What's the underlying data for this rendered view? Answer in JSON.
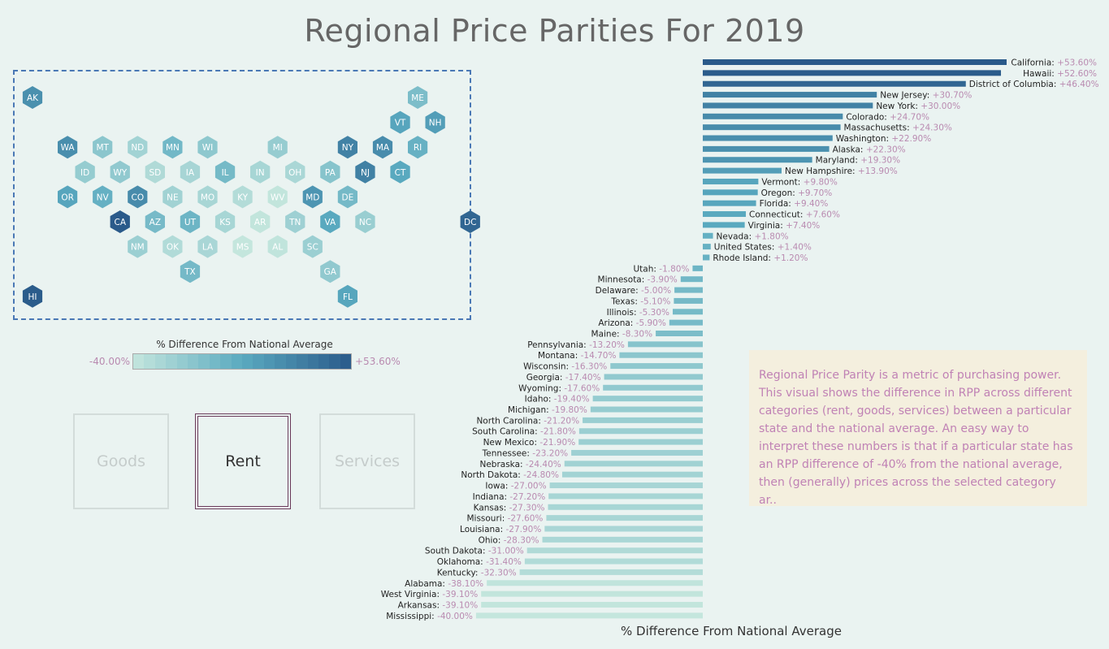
{
  "title": "Regional Price Parities For 2019",
  "legend": {
    "title": "% Difference From National Average",
    "min_label": "-40.00%",
    "max_label": "+53.60%",
    "color_low": "#c4e6dd",
    "color_high": "#2a5a8a"
  },
  "buttons": [
    {
      "label": "Goods",
      "active": false
    },
    {
      "label": "Rent",
      "active": true
    },
    {
      "label": "Services",
      "active": false
    }
  ],
  "info_text": "Regional Price Parity is a metric of purchasing power. This visual shows the difference in RPP  across different categories (rent, goods, services) between a particular state and the national average. An easy way to interpret these numbers is that if a particular state has an RPP difference of -40% from the national average, then (generally) prices across the selected category ar..",
  "chart_data": [
    {
      "type": "hex-map",
      "states": [
        {
          "code": "AK",
          "col": 0,
          "row": 0,
          "value": 22.3
        },
        {
          "code": "ME",
          "col": 11,
          "row": 0,
          "value": -8.3
        },
        {
          "code": "VT",
          "col": 10,
          "row": 1,
          "value": 9.8
        },
        {
          "code": "NH",
          "col": 11,
          "row": 1,
          "value": 13.9
        },
        {
          "code": "WA",
          "col": 1,
          "row": 2,
          "value": 22.9
        },
        {
          "code": "MT",
          "col": 2,
          "row": 2,
          "value": -14.7
        },
        {
          "code": "ND",
          "col": 3,
          "row": 2,
          "value": -24.8
        },
        {
          "code": "MN",
          "col": 4,
          "row": 2,
          "value": -3.9
        },
        {
          "code": "WI",
          "col": 5,
          "row": 2,
          "value": -16.3
        },
        {
          "code": "MI",
          "col": 7,
          "row": 2,
          "value": -19.8
        },
        {
          "code": "NY",
          "col": 9,
          "row": 2,
          "value": 30.0
        },
        {
          "code": "MA",
          "col": 10,
          "row": 2,
          "value": 24.3
        },
        {
          "code": "RI",
          "col": 11,
          "row": 2,
          "value": 1.2
        },
        {
          "code": "ID",
          "col": 1,
          "row": 3,
          "value": -19.4
        },
        {
          "code": "WY",
          "col": 2,
          "row": 3,
          "value": -17.6
        },
        {
          "code": "SD",
          "col": 3,
          "row": 3,
          "value": -31.0
        },
        {
          "code": "IA",
          "col": 4,
          "row": 3,
          "value": -27.0
        },
        {
          "code": "IL",
          "col": 5,
          "row": 3,
          "value": -5.3
        },
        {
          "code": "IN",
          "col": 6,
          "row": 3,
          "value": -27.2
        },
        {
          "code": "OH",
          "col": 7,
          "row": 3,
          "value": -28.3
        },
        {
          "code": "PA",
          "col": 8,
          "row": 3,
          "value": -13.2
        },
        {
          "code": "NJ",
          "col": 9,
          "row": 3,
          "value": 30.7
        },
        {
          "code": "CT",
          "col": 10,
          "row": 3,
          "value": 7.6
        },
        {
          "code": "OR",
          "col": 1,
          "row": 4,
          "value": 9.7
        },
        {
          "code": "NV",
          "col": 2,
          "row": 4,
          "value": 1.8
        },
        {
          "code": "CO",
          "col": 3,
          "row": 4,
          "value": 24.7
        },
        {
          "code": "NE",
          "col": 4,
          "row": 4,
          "value": -24.4
        },
        {
          "code": "MO",
          "col": 5,
          "row": 4,
          "value": -27.6
        },
        {
          "code": "KY",
          "col": 6,
          "row": 4,
          "value": -32.3
        },
        {
          "code": "WV",
          "col": 7,
          "row": 4,
          "value": -39.1
        },
        {
          "code": "MD",
          "col": 8,
          "row": 4,
          "value": 19.3
        },
        {
          "code": "DE",
          "col": 9,
          "row": 4,
          "value": -5.0
        },
        {
          "code": "CA",
          "col": 2,
          "row": 5,
          "value": 53.6
        },
        {
          "code": "AZ",
          "col": 3,
          "row": 5,
          "value": -5.9
        },
        {
          "code": "UT",
          "col": 4,
          "row": 5,
          "value": -1.8
        },
        {
          "code": "KS",
          "col": 5,
          "row": 5,
          "value": -27.3
        },
        {
          "code": "AR",
          "col": 6,
          "row": 5,
          "value": -39.1
        },
        {
          "code": "TN",
          "col": 7,
          "row": 5,
          "value": -23.2
        },
        {
          "code": "VA",
          "col": 8,
          "row": 5,
          "value": 7.4
        },
        {
          "code": "NC",
          "col": 9,
          "row": 5,
          "value": -21.2
        },
        {
          "code": "DC",
          "col": 12,
          "row": 5,
          "value": 46.4
        },
        {
          "code": "NM",
          "col": 3,
          "row": 6,
          "value": -21.9
        },
        {
          "code": "OK",
          "col": 4,
          "row": 6,
          "value": -31.4
        },
        {
          "code": "LA",
          "col": 5,
          "row": 6,
          "value": -27.9
        },
        {
          "code": "MS",
          "col": 6,
          "row": 6,
          "value": -40.0
        },
        {
          "code": "AL",
          "col": 7,
          "row": 6,
          "value": -38.1
        },
        {
          "code": "SC",
          "col": 8,
          "row": 6,
          "value": -21.8
        },
        {
          "code": "TX",
          "col": 4,
          "row": 7,
          "value": -5.1
        },
        {
          "code": "GA",
          "col": 8,
          "row": 7,
          "value": -17.4
        },
        {
          "code": "HI",
          "col": 0,
          "row": 8,
          "value": 52.6
        },
        {
          "code": "FL",
          "col": 9,
          "row": 8,
          "value": 9.4
        }
      ]
    },
    {
      "type": "bar",
      "orientation": "horizontal",
      "xlabel": "% Difference From National Average",
      "xlim": [
        -40,
        53.6
      ],
      "bars": [
        {
          "name": "California",
          "value": 53.6,
          "label": "+53.60%"
        },
        {
          "name": "Hawaii",
          "value": 52.6,
          "label": "+52.60%"
        },
        {
          "name": "District of Columbia",
          "value": 46.4,
          "label": "+46.40%"
        },
        {
          "name": "New Jersey",
          "value": 30.7,
          "label": "+30.70%"
        },
        {
          "name": "New York",
          "value": 30.0,
          "label": "+30.00%"
        },
        {
          "name": "Colorado",
          "value": 24.7,
          "label": "+24.70%"
        },
        {
          "name": "Massachusetts",
          "value": 24.3,
          "label": "+24.30%"
        },
        {
          "name": "Washington",
          "value": 22.9,
          "label": "+22.90%"
        },
        {
          "name": "Alaska",
          "value": 22.3,
          "label": "+22.30%"
        },
        {
          "name": "Maryland",
          "value": 19.3,
          "label": "+19.30%"
        },
        {
          "name": "New Hampshire",
          "value": 13.9,
          "label": "+13.90%"
        },
        {
          "name": "Vermont",
          "value": 9.8,
          "label": "+9.80%"
        },
        {
          "name": "Oregon",
          "value": 9.7,
          "label": "+9.70%"
        },
        {
          "name": "Florida",
          "value": 9.4,
          "label": "+9.40%"
        },
        {
          "name": "Connecticut",
          "value": 7.6,
          "label": "+7.60%"
        },
        {
          "name": "Virginia",
          "value": 7.4,
          "label": "+7.40%"
        },
        {
          "name": "Nevada",
          "value": 1.8,
          "label": "+1.80%"
        },
        {
          "name": "United States",
          "value": 1.4,
          "label": "+1.40%"
        },
        {
          "name": "Rhode Island",
          "value": 1.2,
          "label": "+1.20%"
        },
        {
          "name": "Utah",
          "value": -1.8,
          "label": "-1.80%"
        },
        {
          "name": "Minnesota",
          "value": -3.9,
          "label": "-3.90%"
        },
        {
          "name": "Delaware",
          "value": -5.0,
          "label": "-5.00%"
        },
        {
          "name": "Texas",
          "value": -5.1,
          "label": "-5.10%"
        },
        {
          "name": "Illinois",
          "value": -5.3,
          "label": "-5.30%"
        },
        {
          "name": "Arizona",
          "value": -5.9,
          "label": "-5.90%"
        },
        {
          "name": "Maine",
          "value": -8.3,
          "label": "-8.30%"
        },
        {
          "name": "Pennsylvania",
          "value": -13.2,
          "label": "-13.20%"
        },
        {
          "name": "Montana",
          "value": -14.7,
          "label": "-14.70%"
        },
        {
          "name": "Wisconsin",
          "value": -16.3,
          "label": "-16.30%"
        },
        {
          "name": "Georgia",
          "value": -17.4,
          "label": "-17.40%"
        },
        {
          "name": "Wyoming",
          "value": -17.6,
          "label": "-17.60%"
        },
        {
          "name": "Idaho",
          "value": -19.4,
          "label": "-19.40%"
        },
        {
          "name": "Michigan",
          "value": -19.8,
          "label": "-19.80%"
        },
        {
          "name": "North Carolina",
          "value": -21.2,
          "label": "-21.20%"
        },
        {
          "name": "South Carolina",
          "value": -21.8,
          "label": "-21.80%"
        },
        {
          "name": "New Mexico",
          "value": -21.9,
          "label": "-21.90%"
        },
        {
          "name": "Tennessee",
          "value": -23.2,
          "label": "-23.20%"
        },
        {
          "name": "Nebraska",
          "value": -24.4,
          "label": "-24.40%"
        },
        {
          "name": "North Dakota",
          "value": -24.8,
          "label": "-24.80%"
        },
        {
          "name": "Iowa",
          "value": -27.0,
          "label": "-27.00%"
        },
        {
          "name": "Indiana",
          "value": -27.2,
          "label": "-27.20%"
        },
        {
          "name": "Kansas",
          "value": -27.3,
          "label": "-27.30%"
        },
        {
          "name": "Missouri",
          "value": -27.6,
          "label": "-27.60%"
        },
        {
          "name": "Louisiana",
          "value": -27.9,
          "label": "-27.90%"
        },
        {
          "name": "Ohio",
          "value": -28.3,
          "label": "-28.30%"
        },
        {
          "name": "South Dakota",
          "value": -31.0,
          "label": "-31.00%"
        },
        {
          "name": "Oklahoma",
          "value": -31.4,
          "label": "-31.40%"
        },
        {
          "name": "Kentucky",
          "value": -32.3,
          "label": "-32.30%"
        },
        {
          "name": "Alabama",
          "value": -38.1,
          "label": "-38.10%"
        },
        {
          "name": "West Virginia",
          "value": -39.1,
          "label": "-39.10%"
        },
        {
          "name": "Arkansas",
          "value": -39.1,
          "label": "-39.10%"
        },
        {
          "name": "Mississippi",
          "value": -40.0,
          "label": "-40.00%"
        }
      ]
    }
  ]
}
